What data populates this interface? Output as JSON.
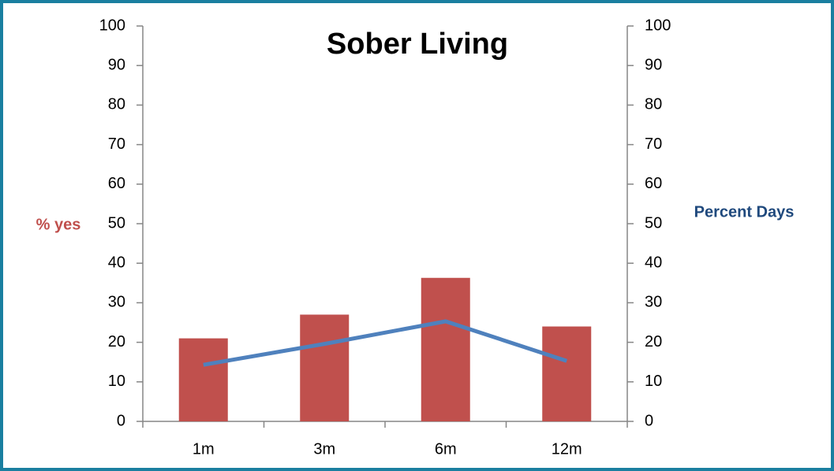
{
  "chart_data": {
    "type": "bar",
    "title": "Sober Living",
    "categories": [
      "1m",
      "3m",
      "6m",
      "12m"
    ],
    "ylabel": "% yes",
    "ylabel_color": "#c0504d",
    "y2label": "Percent Days",
    "y2label_color": "#1f497d",
    "series": [
      {
        "color": "#c0504d",
        "values": [
          21,
          27,
          36.3,
          24
        ]
      },
      {
        "type": "line",
        "axis": "y2",
        "color": "#4f81bd",
        "values": [
          14.3,
          19.6,
          25.3,
          15.3
        ]
      }
    ],
    "ylim": [
      0,
      100
    ],
    "yticks": [
      0,
      10,
      20,
      30,
      40,
      50,
      60,
      70,
      80,
      90,
      100
    ],
    "y2lim": [
      0,
      100
    ],
    "y2ticks": [
      0,
      10,
      20,
      30,
      40,
      50,
      60,
      70,
      80,
      90,
      100
    ],
    "grid": false
  }
}
